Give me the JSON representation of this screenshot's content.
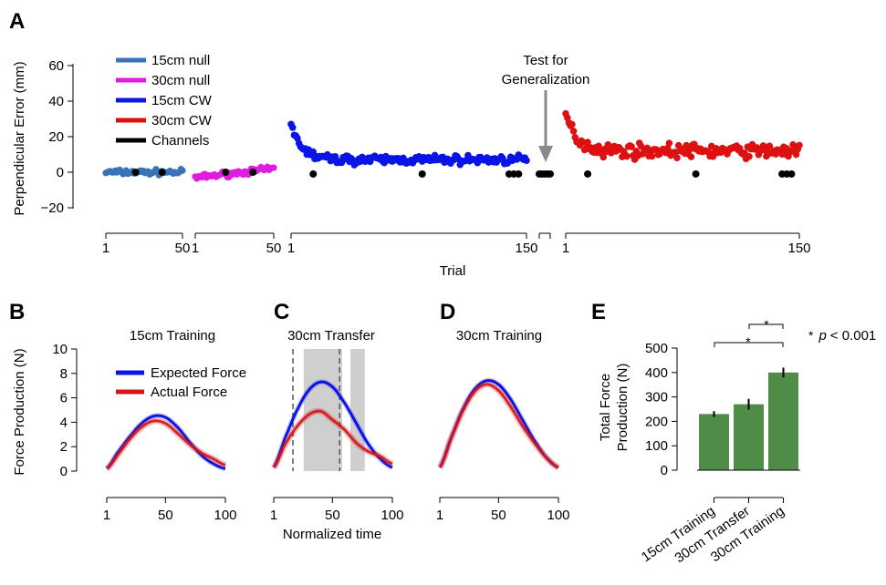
{
  "panel_letters": [
    "A",
    "B",
    "C",
    "D",
    "E"
  ],
  "colors": {
    "null15": "#3a72b6",
    "null30": "#e11be1",
    "cw15": "#0a14e6",
    "cw30": "#dd1111",
    "channels": "#000000",
    "expected": "#0a14e6",
    "actual": "#d41515",
    "bar": "#4f8c48",
    "shade": "#cfcfcf",
    "arrow": "#8a8a8a"
  },
  "chart_data": [
    {
      "id": "A",
      "type": "scatter",
      "ylabel": "Perpendicular Error (mm)",
      "xlabel": "Trial",
      "ylim": [
        -20,
        60
      ],
      "yticks": [
        "60",
        "40",
        "20",
        "0",
        "−20"
      ],
      "annotation": [
        "Test for",
        "Generalization"
      ],
      "legend": [
        "15cm null",
        "30cm null",
        "15cm CW",
        "30cm CW",
        "Channels"
      ],
      "segments": [
        {
          "name": "15cm null",
          "trials": [
            1,
            50
          ],
          "xticks": [
            "1",
            "50"
          ],
          "mean_error": [
            0,
            0
          ],
          "channel_trials": [
            20,
            37
          ],
          "channel_values": [
            0,
            0
          ]
        },
        {
          "name": "30cm null",
          "trials": [
            1,
            50
          ],
          "xticks": [
            "1",
            "50"
          ],
          "mean_error": [
            -3,
            2
          ],
          "channel_trials": [
            20,
            37
          ],
          "channel_values": [
            0,
            0
          ]
        },
        {
          "name": "15cm CW",
          "trials": [
            1,
            150
          ],
          "xticks": [
            "1",
            "150"
          ],
          "first_trial_error": 27,
          "plateau_error": 7,
          "channel_trials": [
            15,
            84,
            139,
            142,
            145
          ],
          "channel_values": [
            -1,
            -1,
            -1,
            -1,
            -1
          ]
        },
        {
          "name": "Test for Generalization",
          "channel_trials": [
            1,
            2,
            3,
            4,
            5
          ],
          "channel_values": [
            -1,
            -1,
            -1,
            -1,
            -1
          ]
        },
        {
          "name": "30cm CW",
          "trials": [
            1,
            150
          ],
          "xticks": [
            "1",
            "150"
          ],
          "first_trial_error": 33,
          "plateau_error": 12,
          "channel_trials": [
            15,
            84,
            139,
            142,
            145
          ],
          "channel_values": [
            -1,
            -1,
            -1,
            -1,
            -1
          ]
        }
      ]
    },
    {
      "id": "B",
      "type": "line",
      "title": "15cm Training",
      "ylabel": "Force Production (N)",
      "ylim": [
        0,
        10
      ],
      "yticks": [
        "10",
        "8",
        "6",
        "4",
        "2",
        "0"
      ],
      "xticks": [
        "1",
        "50",
        "100"
      ],
      "x": [
        1,
        10,
        20,
        30,
        40,
        50,
        60,
        70,
        80,
        90,
        100
      ],
      "series": [
        {
          "name": "Expected Force",
          "values": [
            0.2,
            1.5,
            2.8,
            3.9,
            4.5,
            4.4,
            3.6,
            2.4,
            1.3,
            0.6,
            0.2
          ]
        },
        {
          "name": "Actual Force",
          "values": [
            0.2,
            1.3,
            2.6,
            3.6,
            4.1,
            3.9,
            3.1,
            2.2,
            1.5,
            1.0,
            0.5
          ]
        }
      ],
      "legend": [
        "Expected Force",
        "Actual Force"
      ]
    },
    {
      "id": "C",
      "type": "line",
      "title": "30cm Transfer",
      "xlabel": "Normalized time",
      "ylim": [
        0,
        10
      ],
      "xticks": [
        "1",
        "50",
        "100"
      ],
      "x": [
        1,
        10,
        20,
        30,
        40,
        50,
        60,
        70,
        80,
        90,
        100
      ],
      "series": [
        {
          "name": "Expected Force",
          "values": [
            0.3,
            2.6,
            4.9,
            6.6,
            7.3,
            6.9,
            5.6,
            3.9,
            2.2,
            1.0,
            0.3
          ]
        },
        {
          "name": "Actual Force",
          "values": [
            0.3,
            2.1,
            3.6,
            4.6,
            4.9,
            4.2,
            3.4,
            2.3,
            1.6,
            1.2,
            0.6
          ]
        }
      ],
      "dashed_lines_x": [
        17,
        56
      ],
      "shaded_x_ranges": [
        [
          26,
          58
        ],
        [
          65,
          77
        ]
      ]
    },
    {
      "id": "D",
      "type": "line",
      "title": "30cm Training",
      "ylim": [
        0,
        10
      ],
      "xticks": [
        "1",
        "50",
        "100"
      ],
      "x": [
        1,
        10,
        20,
        30,
        40,
        50,
        60,
        70,
        80,
        90,
        100
      ],
      "series": [
        {
          "name": "Expected Force",
          "values": [
            0.3,
            2.6,
            5.0,
            6.7,
            7.4,
            7.1,
            5.9,
            4.2,
            2.5,
            1.1,
            0.3
          ]
        },
        {
          "name": "Actual Force",
          "values": [
            0.3,
            2.6,
            4.9,
            6.5,
            7.1,
            6.6,
            5.3,
            3.7,
            2.3,
            1.1,
            0.3
          ]
        }
      ]
    },
    {
      "id": "E",
      "type": "bar",
      "ylabel": [
        "Total Force",
        "Production (N)"
      ],
      "ylim": [
        0,
        500
      ],
      "yticks": [
        "500",
        "400",
        "300",
        "200",
        "100",
        "0"
      ],
      "categories": [
        "15cm Training",
        "30cm Transfer",
        "30cm Training"
      ],
      "values": [
        230,
        270,
        400
      ],
      "errors": [
        12,
        22,
        20
      ],
      "significance": [
        "*",
        "*"
      ],
      "note": [
        "*",
        "p",
        "< 0.001"
      ]
    }
  ]
}
